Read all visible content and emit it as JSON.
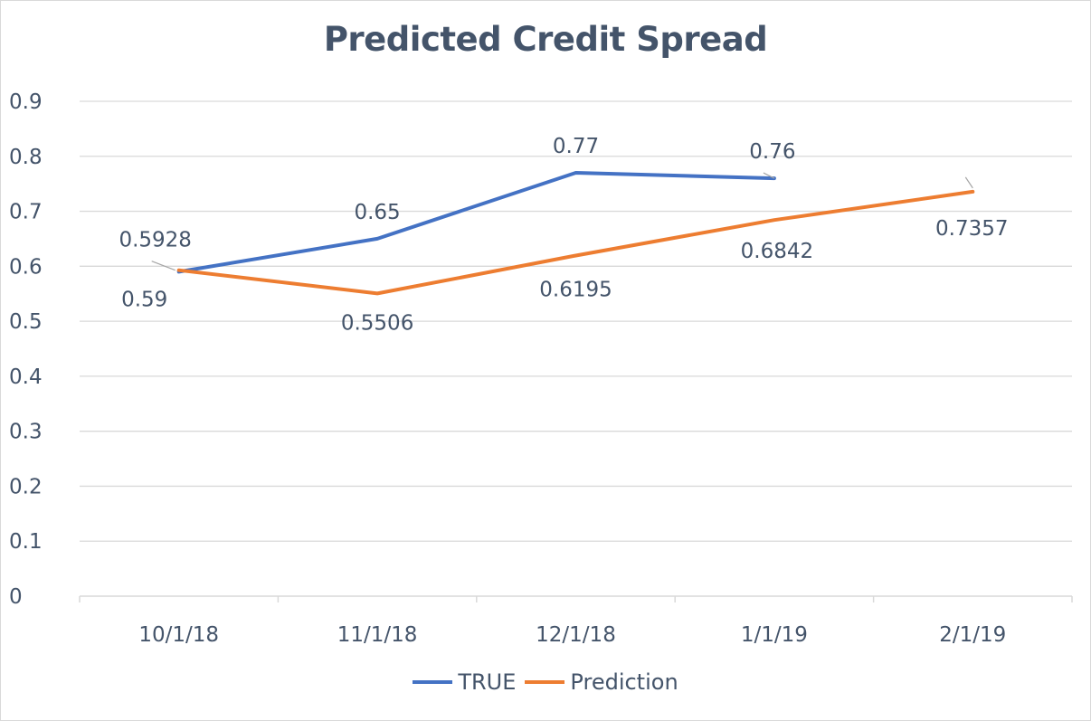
{
  "chart_data": {
    "type": "line",
    "title": "Predicted Credit Spread",
    "categories": [
      "10/1/18",
      "11/1/18",
      "12/1/18",
      "1/1/19",
      "2/1/19"
    ],
    "yticks": [
      "0",
      "0.1",
      "0.2",
      "0.3",
      "0.4",
      "0.5",
      "0.6",
      "0.7",
      "0.8",
      "0.9"
    ],
    "ylim": [
      0,
      0.9
    ],
    "grid": true,
    "legend_position": "bottom",
    "series": [
      {
        "name": "TRUE",
        "color": "#4472c4",
        "values": [
          0.59,
          0.65,
          0.77,
          0.76,
          null
        ],
        "labels": [
          "0.59",
          "0.65",
          "0.77",
          "0.76",
          ""
        ]
      },
      {
        "name": "Prediction",
        "color": "#ed7d31",
        "values": [
          0.5928,
          0.5506,
          0.6195,
          0.6842,
          0.7357
        ],
        "labels": [
          "0.5928",
          "0.5506",
          "0.6195",
          "0.6842",
          "0.7357"
        ]
      }
    ]
  }
}
